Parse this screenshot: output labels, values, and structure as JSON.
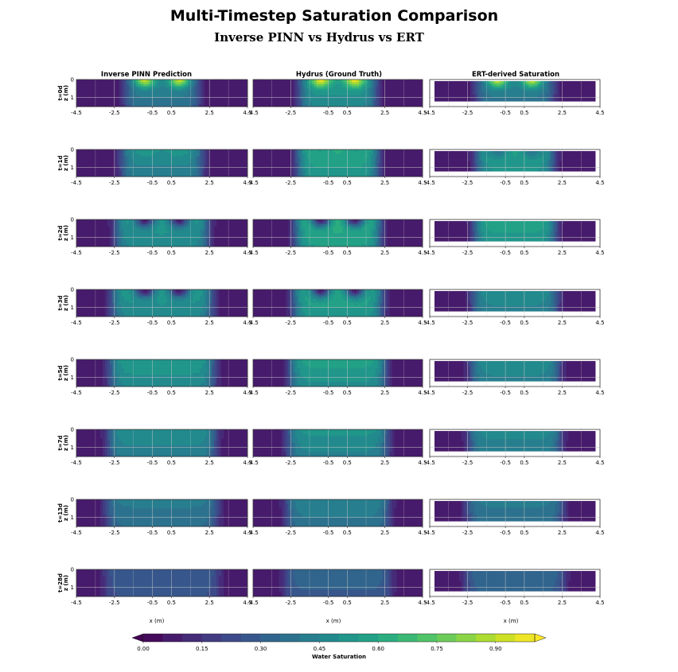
{
  "chart_data": {
    "type": "heatmap",
    "title": "Multi-Timestep Saturation Comparison",
    "subtitle": "Inverse PINN vs Hydrus vs ERT",
    "columns": [
      "Inverse PINN Prediction",
      "Hydrus (Ground Truth)",
      "ERT-derived Saturation"
    ],
    "rows": [
      "t=0d",
      "t=1d",
      "t=2d",
      "t=3d",
      "t=5d",
      "t=7d",
      "t=13d",
      "t=28d"
    ],
    "ylabel": "z (m)",
    "xlabel": "x (m)",
    "x_ticks": [
      "-4.5",
      "-2.5",
      "-0.5",
      "0.5",
      "2.5",
      "4.5"
    ],
    "x_tick_values": [
      -4.5,
      -2.5,
      -0.5,
      0.5,
      2.5,
      4.5
    ],
    "y_ticks": [
      "0",
      "1"
    ],
    "y_tick_values": [
      0,
      1
    ],
    "xlim": [
      -4.5,
      4.5
    ],
    "ylim": [
      1.5,
      0
    ],
    "colorbar": {
      "label": "Water Saturation",
      "ticks": [
        "0.00",
        "0.15",
        "0.30",
        "0.45",
        "0.60",
        "0.75",
        "0.90"
      ],
      "tick_values": [
        0.0,
        0.15,
        0.3,
        0.45,
        0.6,
        0.75,
        0.9
      ],
      "vmin": 0.0,
      "vmax": 1.0,
      "levels": 20,
      "colormap": "viridis"
    },
    "plume": {
      "pinn": {
        "background": 0.05,
        "halfwidth_x": [
          1.9,
          2.1,
          2.4,
          2.6,
          2.7,
          2.8,
          2.9,
          3.0
        ],
        "core": [
          0.45,
          0.5,
          0.55,
          0.55,
          0.55,
          0.5,
          0.42,
          0.3
        ],
        "hotspot": [
          0.95,
          0.55,
          0.05,
          0.02,
          0.0,
          0.0,
          0.0,
          0.0
        ]
      },
      "hydrus": {
        "background": 0.05,
        "halfwidth_x": [
          2.0,
          2.1,
          2.2,
          2.3,
          2.5,
          2.6,
          2.7,
          2.8
        ],
        "core": [
          0.55,
          0.62,
          0.66,
          0.62,
          0.58,
          0.52,
          0.45,
          0.34
        ],
        "hotspot": [
          1.0,
          0.55,
          0.05,
          0.03,
          0.0,
          0.0,
          0.0,
          0.0
        ]
      },
      "ert": {
        "background": 0.05,
        "halfwidth_x": [
          2.0,
          2.0,
          2.1,
          2.2,
          2.3,
          2.4,
          2.5,
          2.6
        ],
        "core": [
          0.45,
          0.58,
          0.6,
          0.5,
          0.5,
          0.48,
          0.42,
          0.35
        ],
        "hotspot": [
          0.95,
          0.35,
          0.0,
          0.0,
          0.0,
          0.0,
          0.0,
          0.0
        ]
      }
    },
    "ert_depth_max": 1.2
  },
  "colors": {
    "background": "#ffffff",
    "grid": "#c8c8c8",
    "axis": "#222222"
  }
}
